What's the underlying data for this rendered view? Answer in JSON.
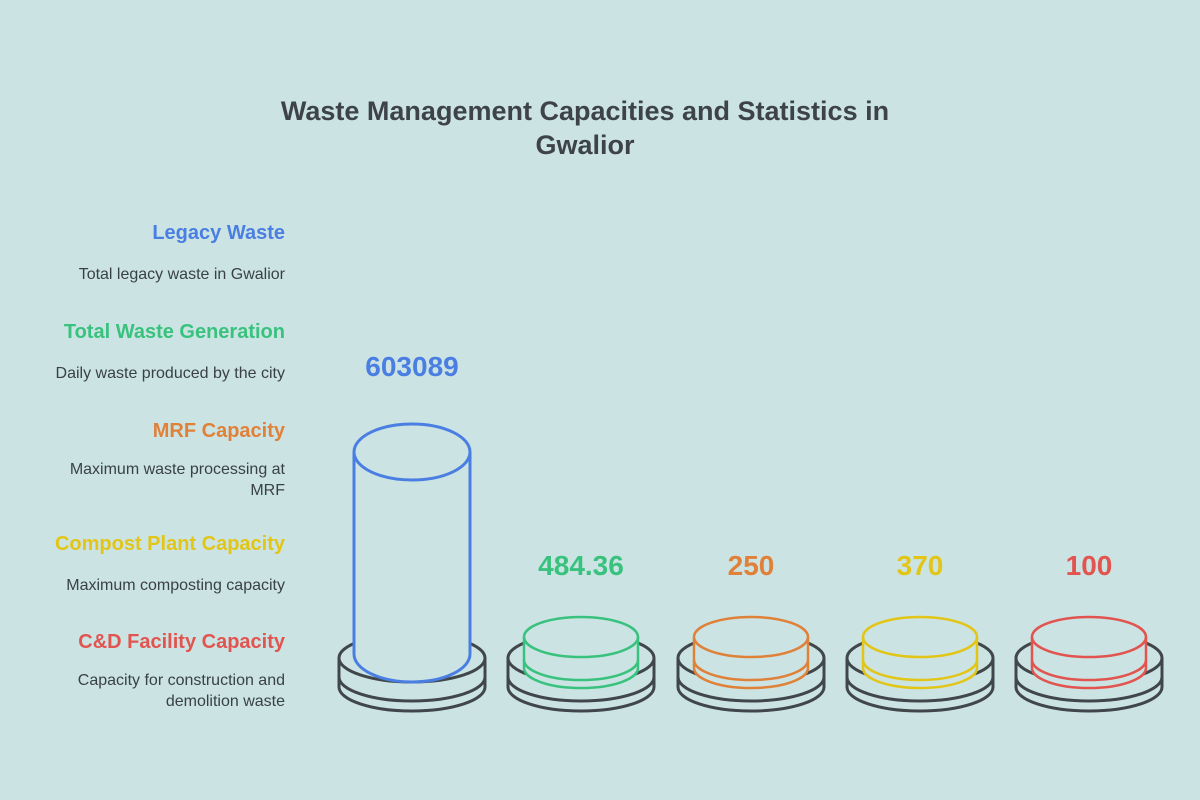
{
  "title": "Waste Management Capacities and Statistics in Gwalior",
  "colors": {
    "background": "#cbe4e3",
    "title_text": "#3e4347",
    "description_text": "#3a4145",
    "platform_stroke": "#40464a"
  },
  "chart_data": {
    "type": "bar",
    "style": "isometric-cylinders-on-platforms",
    "title": "Waste Management Capacities and Statistics in Gwalior",
    "legend_position": "left",
    "grid": false,
    "items": [
      {
        "label": "Legacy Waste",
        "description": "Total legacy waste in Gwalior",
        "value": 603089,
        "value_label": "603089",
        "color": "#4a7ee2"
      },
      {
        "label": "Total Waste Generation",
        "description": "Daily waste produced by the city",
        "value": 484.36,
        "value_label": "484.36",
        "color": "#39c27e"
      },
      {
        "label": "MRF Capacity",
        "description": "Maximum waste processing at\nMRF",
        "value": 250,
        "value_label": "250",
        "color": "#e0813a"
      },
      {
        "label": "Compost Plant Capacity",
        "description": "Maximum composting capacity",
        "value": 370,
        "value_label": "370",
        "color": "#e2c517"
      },
      {
        "label": "C&D Facility Capacity",
        "description": "Capacity for construction and\ndemolition waste",
        "value": 100,
        "value_label": "100",
        "color": "#e2544f"
      }
    ]
  }
}
